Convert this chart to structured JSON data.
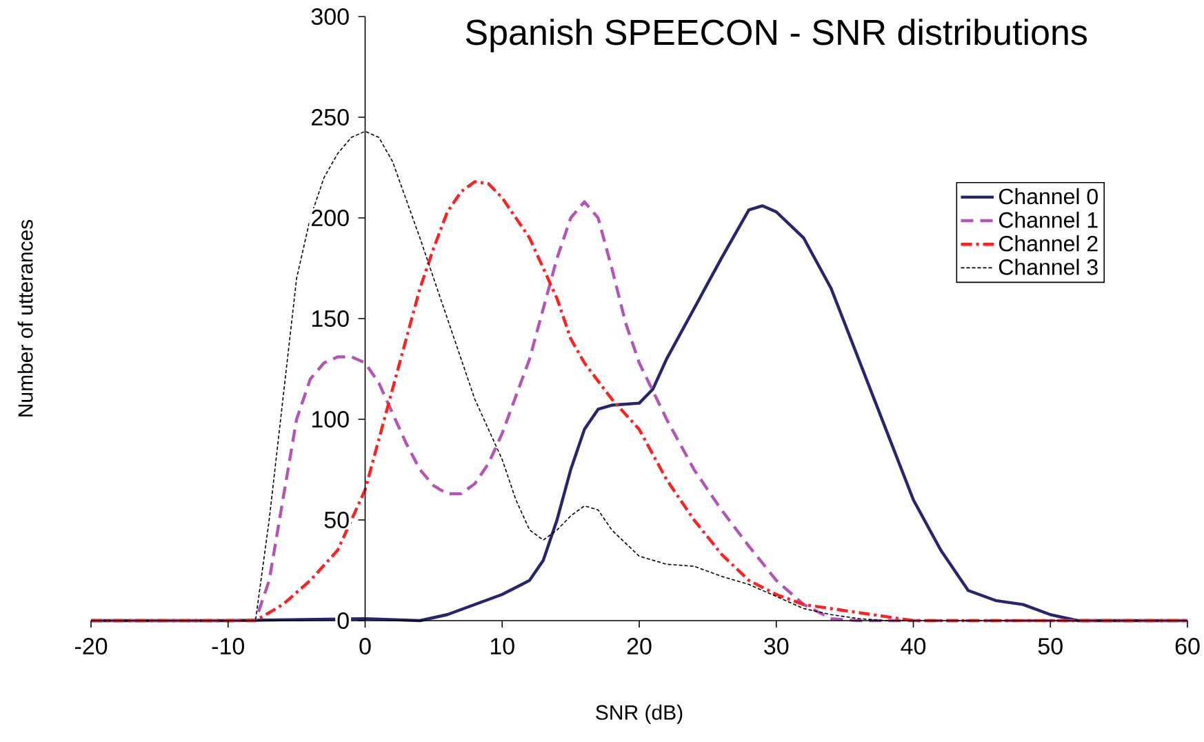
{
  "chart_data": {
    "type": "line",
    "title": "Spanish SPEECON - SNR distributions",
    "xlabel": "SNR (dB)",
    "ylabel": "Number of utterances",
    "xlim": [
      -20,
      60
    ],
    "ylim": [
      0,
      300
    ],
    "xticks": [
      -20,
      -10,
      0,
      10,
      20,
      30,
      40,
      50,
      60
    ],
    "yticks": [
      0,
      50,
      100,
      150,
      200,
      250,
      300
    ],
    "legend": "right",
    "grid": false,
    "marker": "none",
    "series": [
      {
        "name": "Channel 0",
        "color": "#26256e",
        "line_style": "solid",
        "x": [
          -20,
          -10,
          0,
          4,
          6,
          8,
          10,
          12,
          13,
          14,
          15,
          16,
          17,
          18,
          20,
          21,
          22,
          24,
          26,
          28,
          29,
          30,
          32,
          34,
          36,
          38,
          40,
          42,
          44,
          46,
          48,
          50,
          52,
          60
        ],
        "values": [
          0,
          0,
          1,
          0,
          3,
          8,
          13,
          20,
          30,
          50,
          75,
          95,
          105,
          107,
          108,
          115,
          130,
          155,
          180,
          204,
          206,
          203,
          190,
          165,
          130,
          95,
          60,
          35,
          15,
          10,
          8,
          3,
          0,
          0
        ]
      },
      {
        "name": "Channel 1",
        "color": "#b455b6",
        "line_style": "dashed",
        "x": [
          -20,
          -8,
          -7,
          -6,
          -5,
          -4,
          -3,
          -2,
          -1,
          0,
          1,
          2,
          3,
          4,
          5,
          6,
          7,
          8,
          9,
          10,
          12,
          13,
          14,
          15,
          16,
          17,
          18,
          19,
          20,
          22,
          24,
          26,
          28,
          30,
          32,
          34,
          36,
          60
        ],
        "values": [
          0,
          0,
          20,
          60,
          100,
          120,
          128,
          131,
          131,
          128,
          118,
          103,
          88,
          75,
          67,
          63,
          63,
          68,
          78,
          93,
          130,
          155,
          180,
          200,
          208,
          200,
          175,
          148,
          128,
          100,
          75,
          55,
          37,
          20,
          8,
          1,
          0,
          0
        ]
      },
      {
        "name": "Channel 2",
        "color": "#ff2020",
        "line_style": "dashdot",
        "x": [
          -20,
          -8,
          -6,
          -4,
          -2,
          0,
          1,
          2,
          3,
          4,
          5,
          6,
          7,
          8,
          9,
          10,
          12,
          14,
          15,
          16,
          18,
          20,
          22,
          24,
          26,
          28,
          30,
          32,
          34,
          36,
          38,
          40,
          60
        ],
        "values": [
          0,
          0,
          8,
          20,
          35,
          65,
          90,
          115,
          140,
          165,
          185,
          203,
          213,
          218,
          217,
          210,
          190,
          160,
          140,
          128,
          110,
          95,
          70,
          50,
          33,
          20,
          13,
          8,
          6,
          4,
          2,
          0,
          0
        ]
      },
      {
        "name": "Channel 3",
        "color": "#000000",
        "line_style": "dotted",
        "x": [
          -20,
          -8,
          -7,
          -6,
          -5,
          -4,
          -3,
          -2,
          -1,
          0,
          1,
          2,
          4,
          6,
          8,
          10,
          11,
          12,
          13,
          14,
          15,
          16,
          17,
          18,
          20,
          22,
          24,
          26,
          28,
          30,
          32,
          34,
          36,
          38,
          60
        ],
        "values": [
          0,
          0,
          50,
          110,
          170,
          200,
          220,
          232,
          240,
          243,
          240,
          228,
          190,
          150,
          110,
          80,
          60,
          45,
          40,
          45,
          52,
          57,
          55,
          45,
          32,
          28,
          27,
          22,
          18,
          12,
          6,
          3,
          1,
          0,
          0
        ]
      }
    ]
  }
}
